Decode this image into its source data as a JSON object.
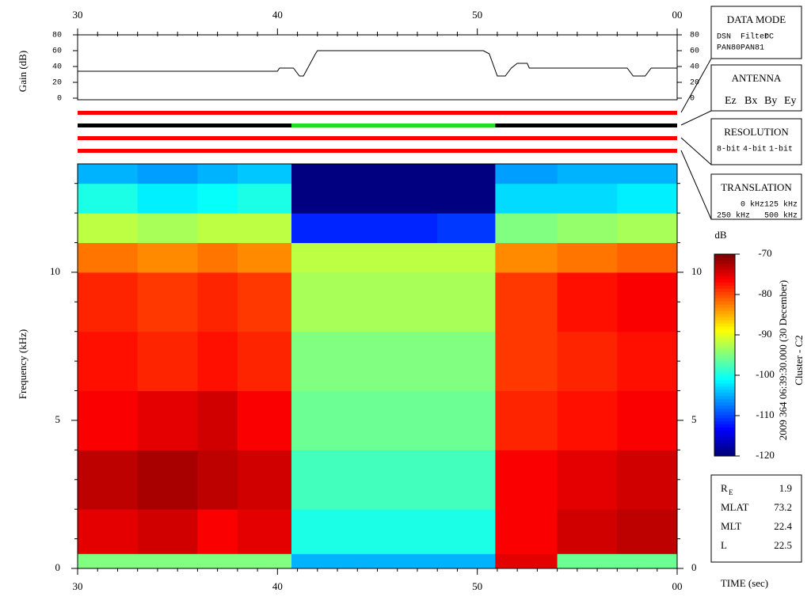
{
  "chart_data": [
    {
      "type": "line",
      "ylabel": "Gain (dB)",
      "x": [
        30,
        40,
        40.1,
        40.8,
        41.1,
        41.3,
        41.9,
        42,
        50.3,
        50.6,
        51,
        51.4,
        51.7,
        52,
        52.5,
        52.6,
        57.5,
        57.8,
        58.4,
        58.7,
        60
      ],
      "values": [
        34,
        34,
        38,
        38,
        28,
        28,
        56,
        60,
        60,
        56,
        28,
        28,
        38,
        44,
        44,
        38,
        38,
        28,
        28,
        38,
        38
      ],
      "color": "#000000",
      "xlim": [
        30,
        60
      ],
      "xticks": [
        30,
        40,
        50,
        {
          "value": 60,
          "label": "00"
        }
      ],
      "ylim": [
        0,
        80
      ],
      "yticks": [
        0,
        20,
        40,
        60,
        80
      ]
    },
    {
      "type": "heatmap",
      "ylabel": "Frequency (kHz)",
      "xlabel": "TIME (sec)",
      "x_edges": [
        30,
        33,
        36,
        38,
        40.7,
        44,
        48,
        50.9,
        54,
        57,
        60
      ],
      "y_edges": [
        0,
        0.5,
        2,
        4,
        6,
        8,
        10,
        11,
        12,
        13,
        13.66
      ],
      "z": [
        [
          -95,
          -75,
          -73,
          -76,
          -77,
          -78,
          -82,
          -92,
          -100,
          -105
        ],
        [
          -95,
          -74,
          -72,
          -75,
          -78,
          -79,
          -83,
          -93,
          -102,
          -106
        ],
        [
          -95,
          -76,
          -73,
          -74,
          -77,
          -78,
          -82,
          -92,
          -101,
          -105
        ],
        [
          -95,
          -75,
          -74,
          -76,
          -78,
          -79,
          -83,
          -92,
          -100,
          -104
        ],
        [
          -105,
          -100,
          -98,
          -96,
          -95,
          -93,
          -92,
          -112,
          -120,
          -120
        ],
        [
          -105,
          -100,
          -98,
          -96,
          -95,
          -93,
          -92,
          -112,
          -120,
          -120
        ],
        [
          -105,
          -100,
          -98,
          -96,
          -95,
          -93,
          -92,
          -111,
          -120,
          -120
        ],
        [
          -75,
          -76,
          -76,
          -78,
          -79,
          -79,
          -83,
          -95,
          -103,
          -106
        ],
        [
          -96,
          -74,
          -75,
          -77,
          -78,
          -77,
          -82,
          -94,
          -103,
          -105
        ],
        [
          -96,
          -73,
          -74,
          -76,
          -77,
          -76,
          -81,
          -93,
          -102,
          -105
        ]
      ],
      "xlim": [
        30,
        60
      ],
      "xticks": [
        30,
        40,
        50,
        {
          "value": 60,
          "label": "00"
        }
      ],
      "x_minor_ticks": [
        31,
        32,
        33,
        34,
        35,
        36,
        37,
        38,
        39,
        41,
        42,
        43,
        44,
        45,
        46,
        47,
        48,
        49,
        51,
        52,
        53,
        54,
        55,
        56,
        57,
        58,
        59
      ],
      "ylim": [
        0,
        13.66
      ],
      "yticks": [
        0,
        5,
        10
      ],
      "y_minor_ticks": [
        1,
        2,
        3,
        4,
        6,
        7,
        8,
        9,
        11,
        12,
        13
      ],
      "colorbar": {
        "label": "dB",
        "lim": [
          -120,
          -70
        ],
        "ticks": [
          -70,
          -80,
          -90,
          -100,
          -110,
          -120
        ]
      }
    }
  ],
  "status_bars": [
    {
      "segments": [
        {
          "start": 30,
          "end": 60,
          "color": "#ff0000"
        }
      ]
    },
    {
      "segments": [
        {
          "start": 30,
          "end": 40.7,
          "color": "#000000"
        },
        {
          "start": 40.7,
          "end": 50.9,
          "color": "#22dd22"
        },
        {
          "start": 50.9,
          "end": 60,
          "color": "#000000"
        }
      ]
    },
    {
      "segments": [
        {
          "start": 30,
          "end": 60,
          "color": "#ff0000"
        }
      ]
    },
    {
      "segments": [
        {
          "start": 30,
          "end": 60,
          "color": "#ff0000"
        }
      ]
    }
  ],
  "legend_boxes": [
    {
      "title": "DATA MODE",
      "items": [
        {
          "text": "DSN",
          "color": "#ff0000"
        },
        {
          "text": "Filter",
          "color": "#22cc22"
        },
        {
          "text": "DC",
          "color": "#0000ff"
        },
        {
          "text": "PAN80",
          "color": "#000000"
        },
        {
          "text": "PAN81",
          "color": "#00cccc"
        }
      ]
    },
    {
      "title": "ANTENNA",
      "items": [
        {
          "text": "Ez",
          "color": "#ff0000"
        },
        {
          "text": "Bx",
          "color": "#22cc22"
        },
        {
          "text": "By",
          "color": "#0000ff"
        },
        {
          "text": "Ey",
          "color": "#000000"
        }
      ]
    },
    {
      "title": "RESOLUTION",
      "items": [
        {
          "text": "8-bit",
          "color": "#ff0000"
        },
        {
          "text": "4-bit",
          "color": "#22cc22"
        },
        {
          "text": "1-bit",
          "color": "#0000ff"
        }
      ]
    },
    {
      "title": "TRANSLATION",
      "items": [
        {
          "text": "0 kHz",
          "color": "#ff0000"
        },
        {
          "text": "125 kHz",
          "color": "#22cc22"
        },
        {
          "text": "250 kHz",
          "color": "#0000ff"
        },
        {
          "text": "500 kHz",
          "color": "#000000"
        }
      ]
    }
  ],
  "timestamp": "2009 364 06:39:30.000 (30 December)",
  "spacecraft": "Cluster - C2",
  "info": [
    {
      "label": "R",
      "sub": "E",
      "value": "1.9"
    },
    {
      "label": "MLAT",
      "value": "73.2"
    },
    {
      "label": "MLT",
      "value": "22.4"
    },
    {
      "label": "L",
      "value": "22.5"
    }
  ]
}
